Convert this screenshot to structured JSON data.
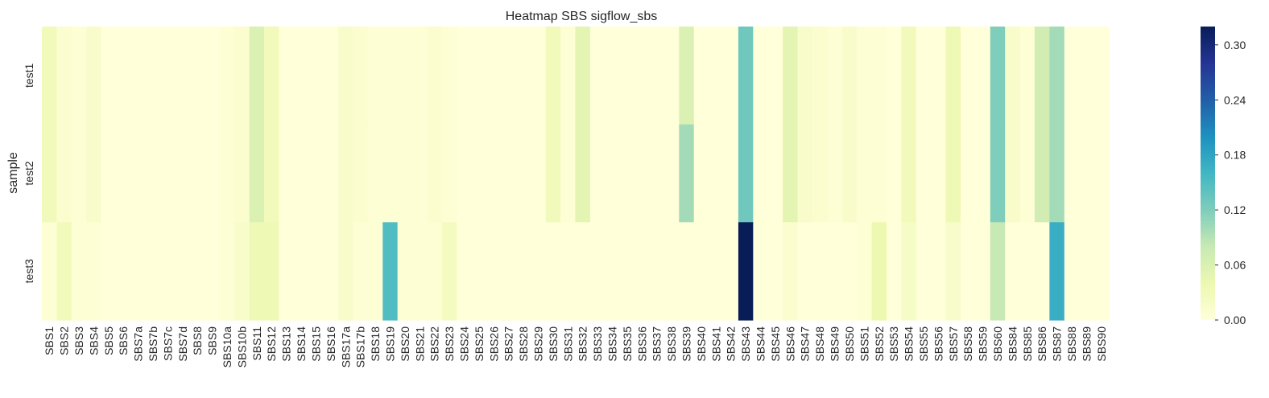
{
  "chart_data": {
    "type": "heatmap",
    "title": "Heatmap SBS sigflow_sbs",
    "xlabel": "",
    "ylabel": "sample",
    "colormap": "YlGnBu",
    "colorbar": {
      "min": 0.0,
      "max": 0.32,
      "ticks": [
        "0.00",
        "0.06",
        "0.12",
        "0.18",
        "0.24",
        "0.30"
      ]
    },
    "columns": [
      "SBS1",
      "SBS2",
      "SBS3",
      "SBS4",
      "SBS5",
      "SBS6",
      "SBS7a",
      "SBS7b",
      "SBS7c",
      "SBS7d",
      "SBS8",
      "SBS9",
      "SBS10a",
      "SBS10b",
      "SBS11",
      "SBS12",
      "SBS13",
      "SBS14",
      "SBS15",
      "SBS16",
      "SBS17a",
      "SBS17b",
      "SBS18",
      "SBS19",
      "SBS20",
      "SBS21",
      "SBS22",
      "SBS23",
      "SBS24",
      "SBS25",
      "SBS26",
      "SBS27",
      "SBS28",
      "SBS29",
      "SBS30",
      "SBS31",
      "SBS32",
      "SBS33",
      "SBS34",
      "SBS35",
      "SBS36",
      "SBS37",
      "SBS38",
      "SBS39",
      "SBS40",
      "SBS41",
      "SBS42",
      "SBS43",
      "SBS44",
      "SBS45",
      "SBS46",
      "SBS47",
      "SBS48",
      "SBS49",
      "SBS50",
      "SBS51",
      "SBS52",
      "SBS53",
      "SBS54",
      "SBS55",
      "SBS56",
      "SBS57",
      "SBS58",
      "SBS59",
      "SBS60",
      "SBS84",
      "SBS85",
      "SBS86",
      "SBS87",
      "SBS88",
      "SBS89",
      "SBS90"
    ],
    "rows": [
      "test1",
      "test2",
      "test3"
    ],
    "values": [
      [
        0.03,
        0.01,
        0.005,
        0.015,
        0,
        0,
        0,
        0,
        0,
        0,
        0,
        0,
        0.005,
        0.01,
        0.06,
        0.03,
        0,
        0,
        0,
        0,
        0.015,
        0.01,
        0.005,
        0.005,
        0.005,
        0.005,
        0.01,
        0.005,
        0,
        0,
        0,
        0,
        0,
        0,
        0.03,
        0.005,
        0.05,
        0,
        0,
        0,
        0,
        0,
        0,
        0.06,
        0,
        0,
        0,
        0.13,
        0,
        0,
        0.05,
        0.015,
        0.01,
        0.005,
        0.015,
        0.005,
        0.005,
        0,
        0.03,
        0,
        0,
        0.035,
        0,
        0,
        0.12,
        0.015,
        0.005,
        0.07,
        0.1,
        0,
        0,
        0
      ],
      [
        0.03,
        0.01,
        0.005,
        0.015,
        0,
        0,
        0,
        0,
        0,
        0,
        0,
        0,
        0.005,
        0.01,
        0.06,
        0.03,
        0,
        0,
        0,
        0,
        0.015,
        0.01,
        0.005,
        0.005,
        0.005,
        0.005,
        0.01,
        0.005,
        0,
        0,
        0,
        0,
        0,
        0,
        0.03,
        0.005,
        0.05,
        0,
        0,
        0,
        0,
        0,
        0,
        0.1,
        0,
        0,
        0,
        0.13,
        0,
        0,
        0.05,
        0.015,
        0.01,
        0.005,
        0.015,
        0.005,
        0.005,
        0,
        0.03,
        0,
        0,
        0.035,
        0,
        0,
        0.12,
        0.015,
        0.005,
        0.07,
        0.1,
        0,
        0,
        0
      ],
      [
        0.005,
        0.03,
        0.005,
        0.005,
        0,
        0,
        0,
        0,
        0,
        0,
        0,
        0,
        0.005,
        0.015,
        0.035,
        0.035,
        0,
        0,
        0,
        0,
        0.015,
        0.005,
        0.005,
        0.15,
        0.005,
        0.005,
        0.005,
        0.025,
        0,
        0,
        0,
        0,
        0,
        0,
        0,
        0,
        0,
        0,
        0,
        0,
        0,
        0,
        0,
        0,
        0,
        0,
        0,
        0.32,
        0,
        0,
        0.01,
        0,
        0,
        0,
        0,
        0.005,
        0.04,
        0,
        0.02,
        0,
        0,
        0.015,
        0,
        0,
        0.08,
        0,
        0,
        0,
        0.17,
        0,
        0,
        0
      ]
    ]
  }
}
